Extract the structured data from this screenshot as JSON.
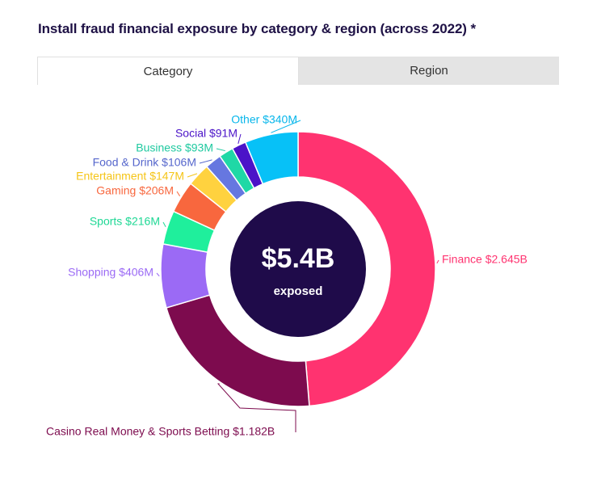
{
  "title": "Install fraud financial exposure by category & region (across 2022) *",
  "tabs": [
    {
      "label": "Category",
      "active": true
    },
    {
      "label": "Region",
      "active": false
    }
  ],
  "center": {
    "value": "$5.4B",
    "label": "exposed",
    "color": "#1f0b4a"
  },
  "chart_data": {
    "type": "pie",
    "donut": true,
    "unit": "USD millions",
    "slices": [
      {
        "name": "Finance",
        "label": "Finance $2.645B",
        "value": 2645,
        "color": "#ff3370"
      },
      {
        "name": "Casino Real Money & Sports Betting",
        "label": "Casino Real Money & Sports Betting $1.182B",
        "value": 1182,
        "color": "#7d0b4e"
      },
      {
        "name": "Shopping",
        "label": "Shopping $406M",
        "value": 406,
        "color": "#9b6af5"
      },
      {
        "name": "Sports",
        "label": "Sports $216M",
        "value": 216,
        "color": "#1fef9c"
      },
      {
        "name": "Gaming",
        "label": "Gaming $206M",
        "value": 206,
        "color": "#f8673e"
      },
      {
        "name": "Entertainment",
        "label": "Entertainment $147M",
        "value": 147,
        "color": "#ffd23f"
      },
      {
        "name": "Food & Drink",
        "label": "Food & Drink $106M",
        "value": 106,
        "color": "#6677e0"
      },
      {
        "name": "Business",
        "label": "Business $93M",
        "value": 93,
        "color": "#1fd8a6"
      },
      {
        "name": "Social",
        "label": "Social $91M",
        "value": 91,
        "color": "#4b13c8"
      },
      {
        "name": "Other",
        "label": "Other $340M",
        "value": 340,
        "color": "#07c1f7"
      }
    ],
    "label_colors": {
      "Finance": "#ff3370",
      "Casino Real Money & Sports Betting": "#7d0b4e",
      "Shopping": "#9b6af5",
      "Sports": "#1fd895",
      "Gaming": "#f8673e",
      "Entertainment": "#f5c518",
      "Food & Drink": "#5566cc",
      "Business": "#1fc9a0",
      "Social": "#4b13c8",
      "Other": "#07b6eb"
    }
  }
}
